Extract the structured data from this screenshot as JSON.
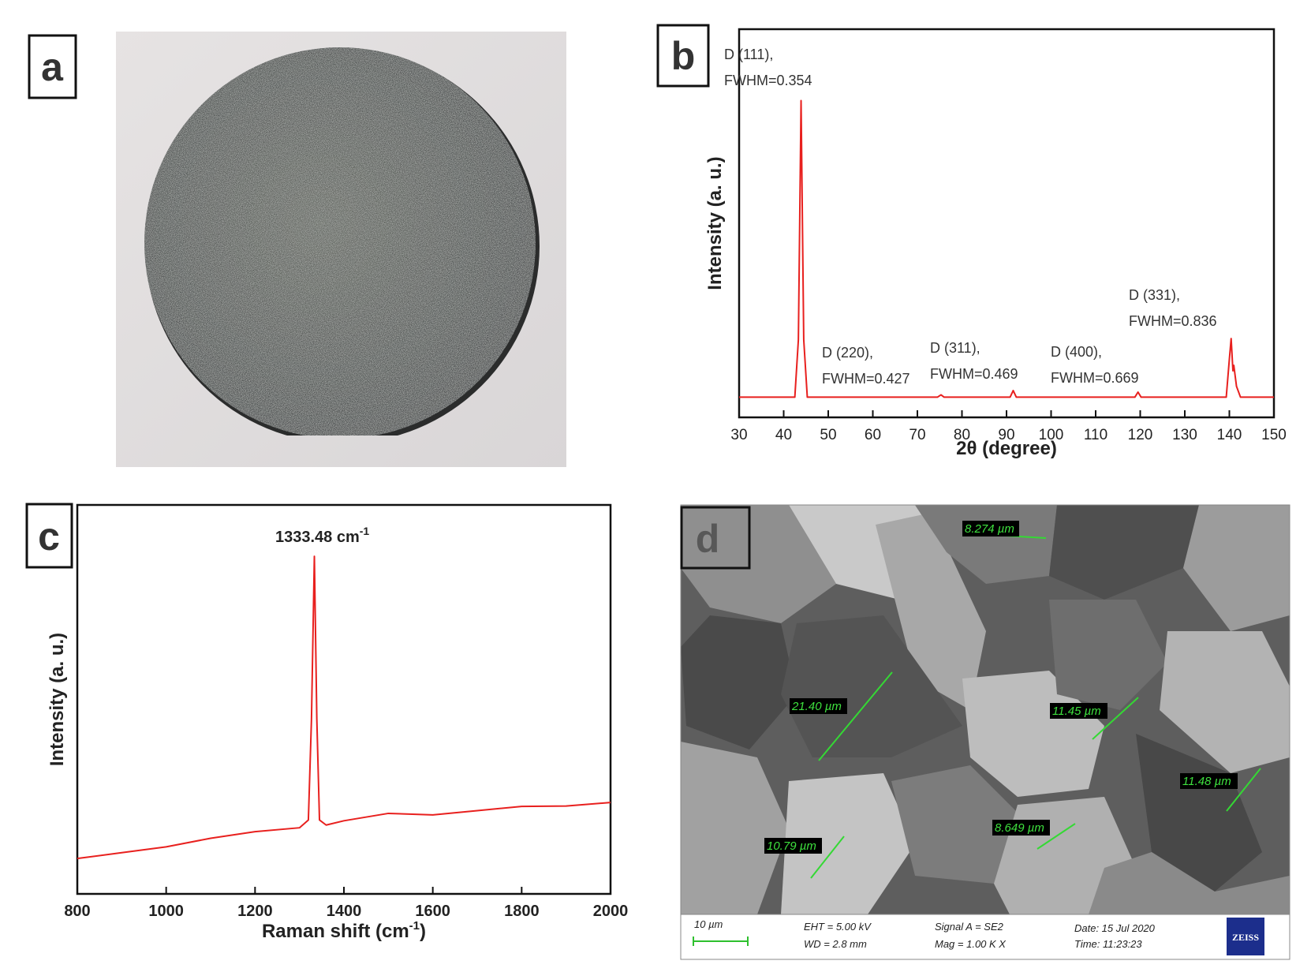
{
  "panel_labels": [
    "a",
    "b",
    "c",
    "d"
  ],
  "chart_data": [
    {
      "type": "line",
      "xlabel": "2θ (degree)",
      "ylabel": "Intensity (a. u.)",
      "xlim": [
        30,
        150
      ],
      "xticks": [
        30,
        40,
        50,
        60,
        70,
        80,
        90,
        100,
        110,
        120,
        130,
        140,
        150
      ],
      "ylim": [
        0,
        100
      ],
      "color": "#e8201e",
      "x": [
        30,
        42.5,
        43.3,
        43.9,
        44.5,
        45.3,
        74.5,
        75.3,
        76,
        90.8,
        91.5,
        92.2,
        118.8,
        119.5,
        120.2,
        139.3,
        140,
        140.4,
        140.8,
        141,
        141.6,
        142.5,
        150
      ],
      "values": [
        5.2,
        5.2,
        20,
        81.6,
        20,
        5.2,
        5.2,
        5.8,
        5.2,
        5.2,
        6.9,
        5.2,
        5.2,
        6.5,
        5.2,
        5.2,
        15,
        20.3,
        12,
        13.4,
        8,
        5.2,
        5.2
      ],
      "annotations": [
        [
          "D (111),",
          "FWHM=0.354"
        ],
        [
          "D (220),",
          "FWHM=0.427"
        ],
        [
          "D (311),",
          "FWHM=0.469"
        ],
        [
          "D (400),",
          "FWHM=0.669"
        ],
        [
          "D (331),",
          "FWHM=0.836"
        ]
      ]
    },
    {
      "type": "line",
      "xlabel": [
        "Raman shift (cm",
        "-1",
        ")"
      ],
      "ylabel": "Intensity (a. u.)",
      "xlim": [
        800,
        2000
      ],
      "xticks": [
        800,
        1000,
        1200,
        1400,
        1600,
        1800,
        2000
      ],
      "ylim": [
        0,
        100
      ],
      "color": "#e8201e",
      "x": [
        800,
        900,
        1000,
        1100,
        1200,
        1300,
        1320,
        1327,
        1333.48,
        1339,
        1345,
        1360,
        1400,
        1500,
        1600,
        1700,
        1800,
        1900,
        2000
      ],
      "values": [
        9.1,
        10.6,
        12.1,
        14.3,
        16,
        17,
        19,
        45,
        86.8,
        45,
        19,
        17.7,
        18.8,
        20.7,
        20.3,
        21.4,
        22.5,
        22.6,
        23.5
      ],
      "annotations": [
        [
          "1333.48 cm",
          "-1"
        ]
      ]
    }
  ],
  "sem": {
    "measurements": [
      "8.274 µm",
      "21.40 µm",
      "11.45 µm",
      "11.48 µm",
      "8.649 µm",
      "10.79 µm"
    ],
    "scale": "10 µm",
    "eht": "EHT = 5.00 kV",
    "wd": "WD = 2.8 mm",
    "signal": "Signal A = SE2",
    "mag": "Mag = 1.00 K X",
    "date": "Date: 15 Jul 2020",
    "time": "Time: 11:23:23",
    "logo": "ZEISS"
  }
}
